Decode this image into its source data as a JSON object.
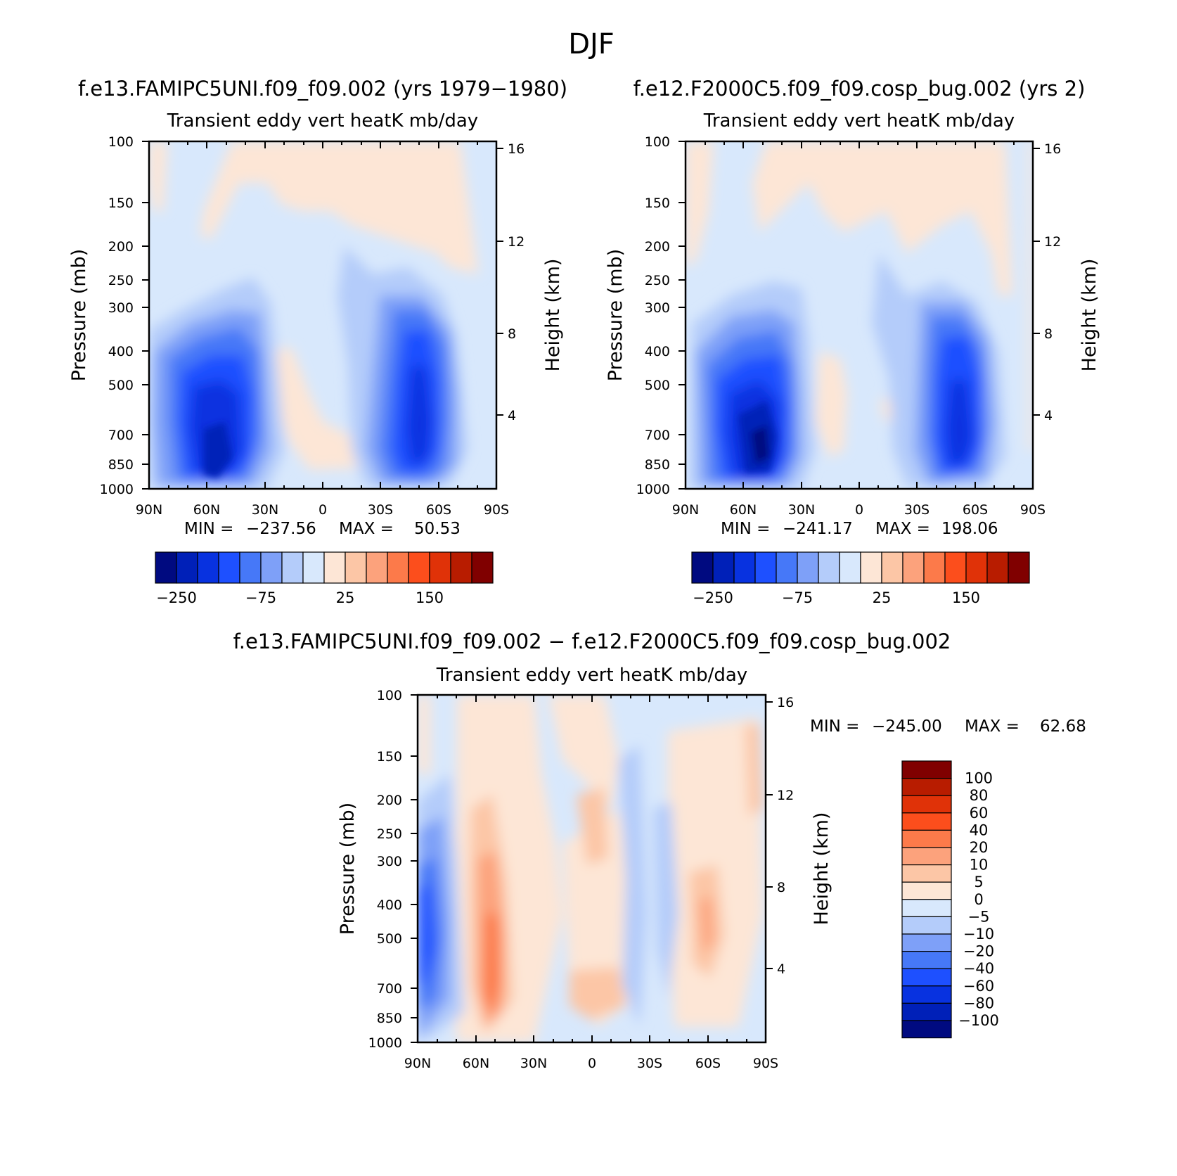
{
  "figure": {
    "title": "DJF"
  },
  "colors": {
    "blues": [
      "#000a80",
      "#0020b8",
      "#0832e0",
      "#1e50ff",
      "#4678f8",
      "#7ea0f8",
      "#b4ccfa",
      "#d8e8fc"
    ],
    "reds": [
      "#fde6d6",
      "#fcc6a6",
      "#fca27c",
      "#fc7a4a",
      "#fc4e1c",
      "#e03208",
      "#b81c00",
      "#800000"
    ]
  },
  "chart_data": [
    {
      "type": "heatmap",
      "panel": "model",
      "title": "f.e13.FAMIPC5UNI.f09_f09.002 (yrs 1979−1980)",
      "subtitle": "Transient eddy vert heatK mb/day",
      "ylabel": "Pressure (mb)",
      "ylabel_right": "Height (km)",
      "x_ticks": [
        "90N",
        "60N",
        "30N",
        "0",
        "30S",
        "60S",
        "90S"
      ],
      "y_ticks": [
        100,
        150,
        200,
        250,
        300,
        400,
        500,
        700,
        850,
        1000
      ],
      "y_right_ticks": [
        4,
        8,
        12,
        16
      ],
      "xlim": [
        90,
        -90
      ],
      "ylim": [
        1000,
        100
      ],
      "stats": {
        "min_label": "MIN =",
        "min": "−237.56",
        "max_label": "MAX =",
        "max": "50.53"
      },
      "colorbar_labels": [
        "−250",
        "−75",
        "25",
        "150"
      ],
      "features": [
        {
          "name": "NH storm-track core",
          "lat": [
            80,
            32
          ],
          "p": [
            350,
            1000
          ],
          "min_approx": -237.56
        },
        {
          "name": "SH storm-track core",
          "lat": [
            -28,
            -78
          ],
          "p": [
            300,
            1000
          ],
          "min_approx": -200
        }
      ]
    },
    {
      "type": "heatmap",
      "panel": "control",
      "title": "f.e12.F2000C5.f09_f09.cosp_bug.002 (yrs 2)",
      "subtitle": "Transient eddy vert heatK mb/day",
      "ylabel": "Pressure (mb)",
      "ylabel_right": "Height (km)",
      "x_ticks": [
        "90N",
        "60N",
        "30N",
        "0",
        "30S",
        "60S",
        "90S"
      ],
      "y_ticks": [
        100,
        150,
        200,
        250,
        300,
        400,
        500,
        700,
        850,
        1000
      ],
      "y_right_ticks": [
        4,
        8,
        12,
        16
      ],
      "xlim": [
        90,
        -90
      ],
      "ylim": [
        1000,
        100
      ],
      "stats": {
        "min_label": "MIN =",
        "min": "−241.17",
        "max_label": "MAX =",
        "max": "198.06"
      },
      "colorbar_labels": [
        "−250",
        "−75",
        "25",
        "150"
      ],
      "features": [
        {
          "name": "NH storm-track core",
          "lat": [
            80,
            32
          ],
          "p": [
            300,
            1000
          ],
          "min_approx": -241.17
        },
        {
          "name": "SH storm-track core",
          "lat": [
            -28,
            -78
          ],
          "p": [
            300,
            1000
          ],
          "min_approx": -200
        }
      ]
    },
    {
      "type": "heatmap",
      "panel": "difference",
      "title": "f.e13.FAMIPC5UNI.f09_f09.002 − f.e12.F2000C5.f09_f09.cosp_bug.002",
      "subtitle": "Transient eddy vert heatK mb/day",
      "ylabel": "Pressure (mb)",
      "ylabel_right": "Height (km)",
      "x_ticks": [
        "90N",
        "60N",
        "30N",
        "0",
        "30S",
        "60S",
        "90S"
      ],
      "y_ticks": [
        100,
        150,
        200,
        250,
        300,
        400,
        500,
        700,
        850,
        1000
      ],
      "y_right_ticks": [
        4,
        8,
        12,
        16
      ],
      "xlim": [
        90,
        -90
      ],
      "ylim": [
        1000,
        100
      ],
      "stats": {
        "min_label": "MIN =",
        "min": "−245.00",
        "max_label": "MAX =",
        "max": "62.68"
      },
      "colorbar_labels": [
        "100",
        "80",
        "60",
        "40",
        "20",
        "10",
        "5",
        "0",
        "−5",
        "−10",
        "−20",
        "−40",
        "−60",
        "−80",
        "−100"
      ]
    }
  ]
}
